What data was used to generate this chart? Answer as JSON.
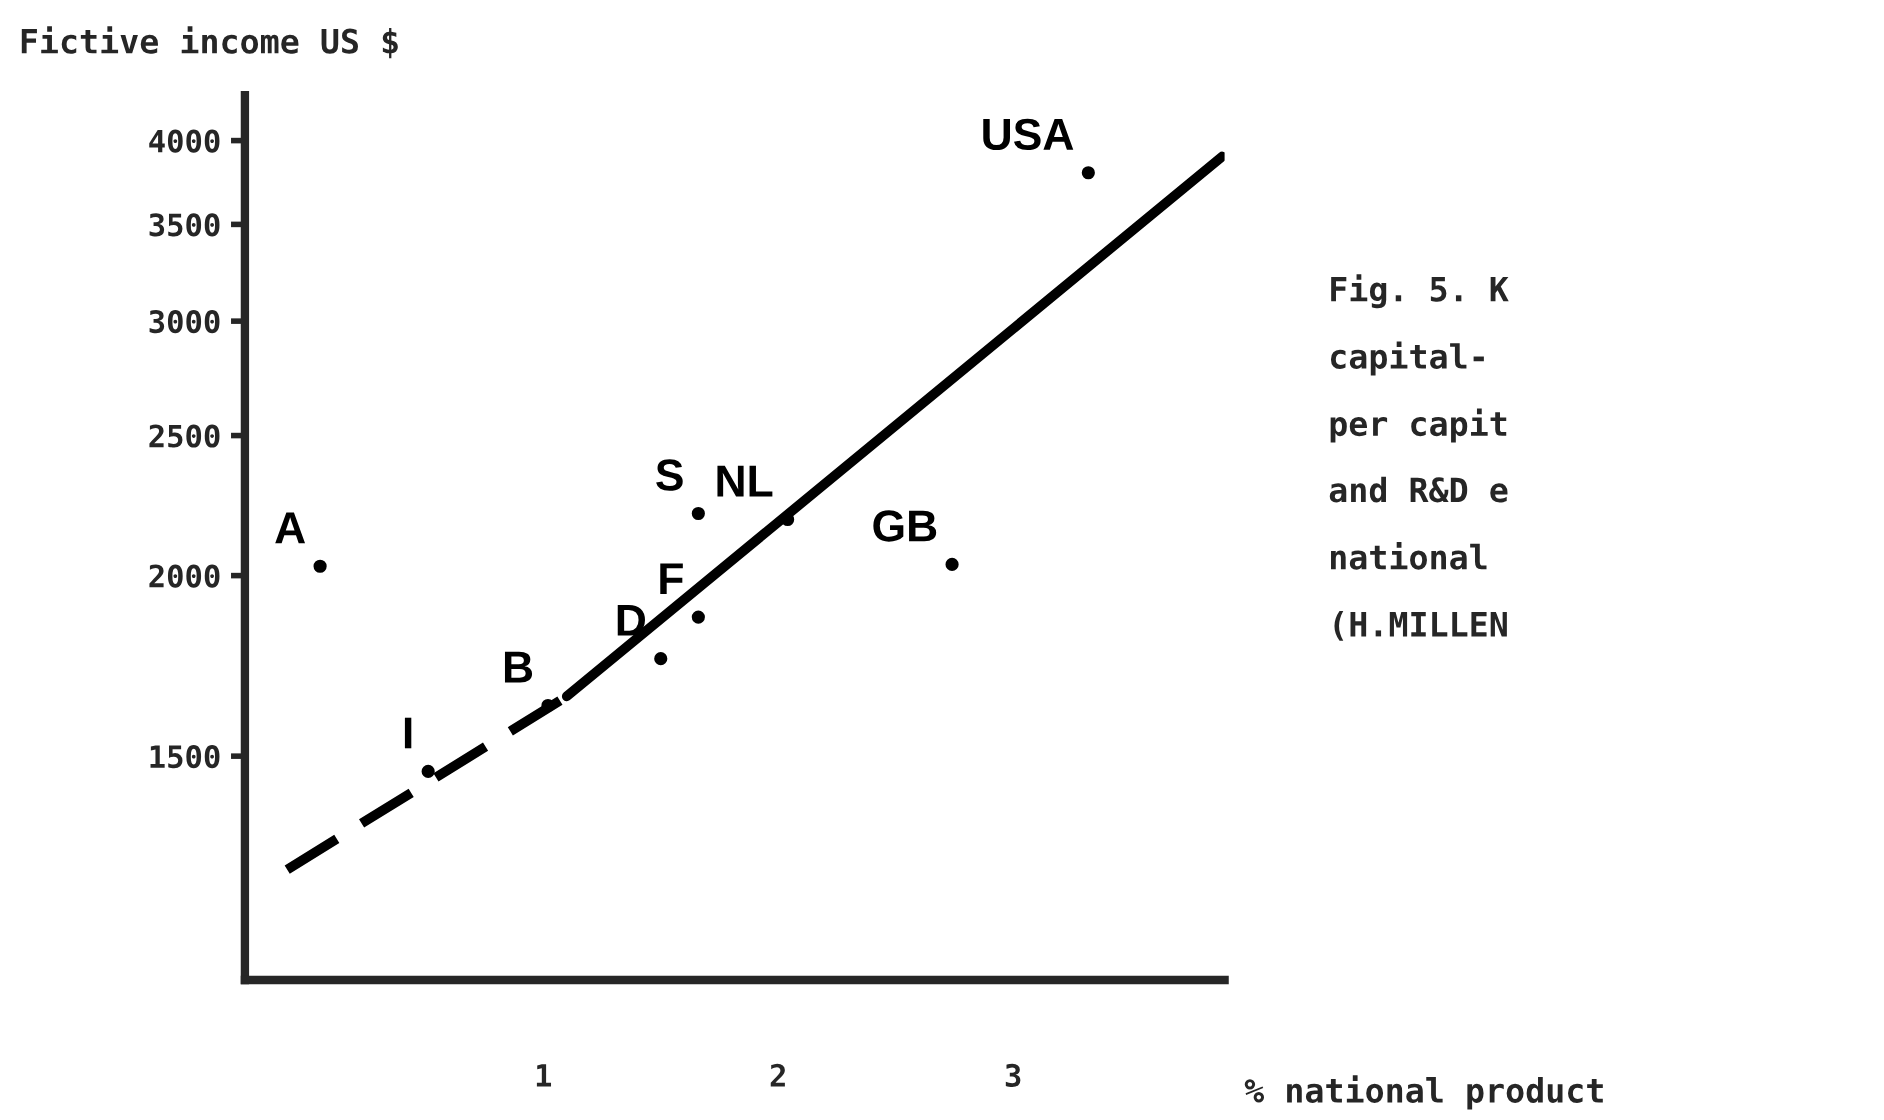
{
  "chart_data": {
    "type": "line",
    "ylabel": "Fictive income US $",
    "xlabel": "% national product",
    "log": "y",
    "xlim": [
      -0.27,
      3.9
    ],
    "ylim": [
      1050,
      4300
    ],
    "xticks": [
      1,
      2,
      3
    ],
    "yticks": [
      1500,
      2000,
      2500,
      3000,
      3500,
      4000
    ],
    "grid": false,
    "legend": false,
    "series": [
      {
        "color": "#000000",
        "x": [
          -0.09,
          1.1
        ],
        "values": [
          1252,
          1650
        ],
        "line_style": "dashed",
        "marker": "none"
      },
      {
        "color": "#000000",
        "x": [
          1.1,
          3.89
        ],
        "values": [
          1650,
          3900
        ],
        "line_style": "solid",
        "marker": "none"
      },
      {
        "type": "scatter",
        "color": "#000000",
        "marker": "circle",
        "x": [
          0.05,
          0.51,
          1.02,
          1.5,
          1.66,
          1.66,
          2.04,
          2.74,
          3.32
        ],
        "values": [
          2030,
          1464,
          1626,
          1752,
          1872,
          2208,
          2187,
          2036,
          3800
        ],
        "value_labels": [
          "A",
          "I",
          "B",
          "D",
          "F",
          "S",
          "NL",
          "GB",
          "USA"
        ]
      }
    ],
    "annotations": [
      "Fig. 5. K",
      "capital-",
      "per capit",
      "and R&D e",
      "national",
      "(H.MILLEN"
    ]
  }
}
